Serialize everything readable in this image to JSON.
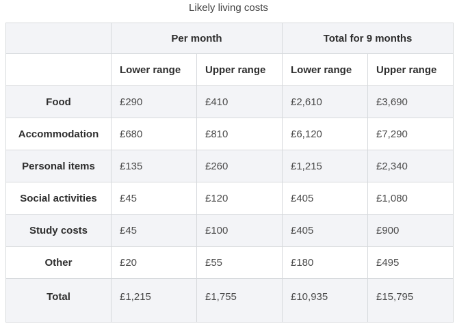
{
  "chart_data": {
    "type": "table",
    "title": "Likely living costs",
    "column_groups": [
      {
        "label": "Per month",
        "span": 2
      },
      {
        "label": "Total for 9 months",
        "span": 2
      }
    ],
    "sub_headers": [
      "Lower range",
      "Upper range",
      "Lower range",
      "Upper range"
    ],
    "rows": [
      {
        "label": "Food",
        "values": [
          "£290",
          "£410",
          "£2,610",
          "£3,690"
        ]
      },
      {
        "label": "Accommodation",
        "values": [
          "£680",
          "£810",
          "£6,120",
          "£7,290"
        ]
      },
      {
        "label": "Personal items",
        "values": [
          "£135",
          "£260",
          "£1,215",
          "£2,340"
        ]
      },
      {
        "label": "Social activities",
        "values": [
          "£45",
          "£120",
          "£405",
          "£1,080"
        ]
      },
      {
        "label": "Study costs",
        "values": [
          "£45",
          "£100",
          "£405",
          "£900"
        ]
      },
      {
        "label": "Other",
        "values": [
          "£20",
          "£55",
          "£180",
          "£495"
        ]
      },
      {
        "label": "Total",
        "values": [
          "£1,215",
          "£1,755",
          "£10,935",
          "£15,795"
        ]
      }
    ],
    "currency": "GBP",
    "layout": {
      "striped_rows": true,
      "grid": true
    }
  },
  "colors": {
    "stripe_background": "#f3f4f7",
    "row_background": "#ffffff",
    "border": "#d6d9dc",
    "header_text": "#2e2e2e",
    "value_text": "#4a4a4a",
    "title_text": "#404040"
  }
}
